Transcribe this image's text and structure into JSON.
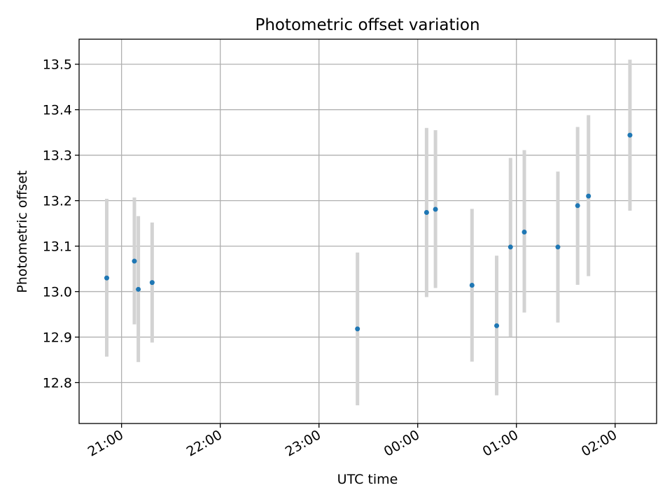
{
  "chart_data": {
    "type": "scatter",
    "title": "Photometric offset variation",
    "xlabel": "UTC time",
    "ylabel": "Photometric offset",
    "grid": true,
    "legend": "none",
    "colors": {
      "point": "#1f77b4",
      "errorbar": "#d3d3d3",
      "grid": "#b0b0b0",
      "axes": "#000000"
    },
    "x_ticks": [
      {
        "label": "21:00",
        "hour": 21.0
      },
      {
        "label": "22:00",
        "hour": 22.0
      },
      {
        "label": "23:00",
        "hour": 23.0
      },
      {
        "label": "00:00",
        "hour": 24.0
      },
      {
        "label": "01:00",
        "hour": 25.0
      },
      {
        "label": "02:00",
        "hour": 26.0
      }
    ],
    "y_ticks": [
      12.8,
      12.9,
      13.0,
      13.1,
      13.2,
      13.3,
      13.4,
      13.5
    ],
    "xlim": [
      20.57,
      26.42
    ],
    "ylim": [
      12.71,
      13.555
    ],
    "points": [
      {
        "t": 20.85,
        "y": 13.03,
        "lo": 12.857,
        "hi": 13.204
      },
      {
        "t": 21.13,
        "y": 13.067,
        "lo": 12.928,
        "hi": 13.207
      },
      {
        "t": 21.17,
        "y": 13.005,
        "lo": 12.845,
        "hi": 13.166
      },
      {
        "t": 21.31,
        "y": 13.02,
        "lo": 12.888,
        "hi": 13.152
      },
      {
        "t": 23.39,
        "y": 12.918,
        "lo": 12.75,
        "hi": 13.086
      },
      {
        "t": 24.09,
        "y": 13.174,
        "lo": 12.988,
        "hi": 13.36
      },
      {
        "t": 24.18,
        "y": 13.181,
        "lo": 13.008,
        "hi": 13.355
      },
      {
        "t": 24.55,
        "y": 13.014,
        "lo": 12.846,
        "hi": 13.182
      },
      {
        "t": 24.8,
        "y": 12.925,
        "lo": 12.772,
        "hi": 13.079
      },
      {
        "t": 24.94,
        "y": 13.098,
        "lo": 12.901,
        "hi": 13.294
      },
      {
        "t": 25.08,
        "y": 13.131,
        "lo": 12.954,
        "hi": 13.311
      },
      {
        "t": 25.42,
        "y": 13.098,
        "lo": 12.932,
        "hi": 13.264
      },
      {
        "t": 25.62,
        "y": 13.189,
        "lo": 13.015,
        "hi": 13.362
      },
      {
        "t": 25.73,
        "y": 13.21,
        "lo": 13.034,
        "hi": 13.388
      },
      {
        "t": 26.15,
        "y": 13.344,
        "lo": 13.178,
        "hi": 13.51
      }
    ]
  }
}
